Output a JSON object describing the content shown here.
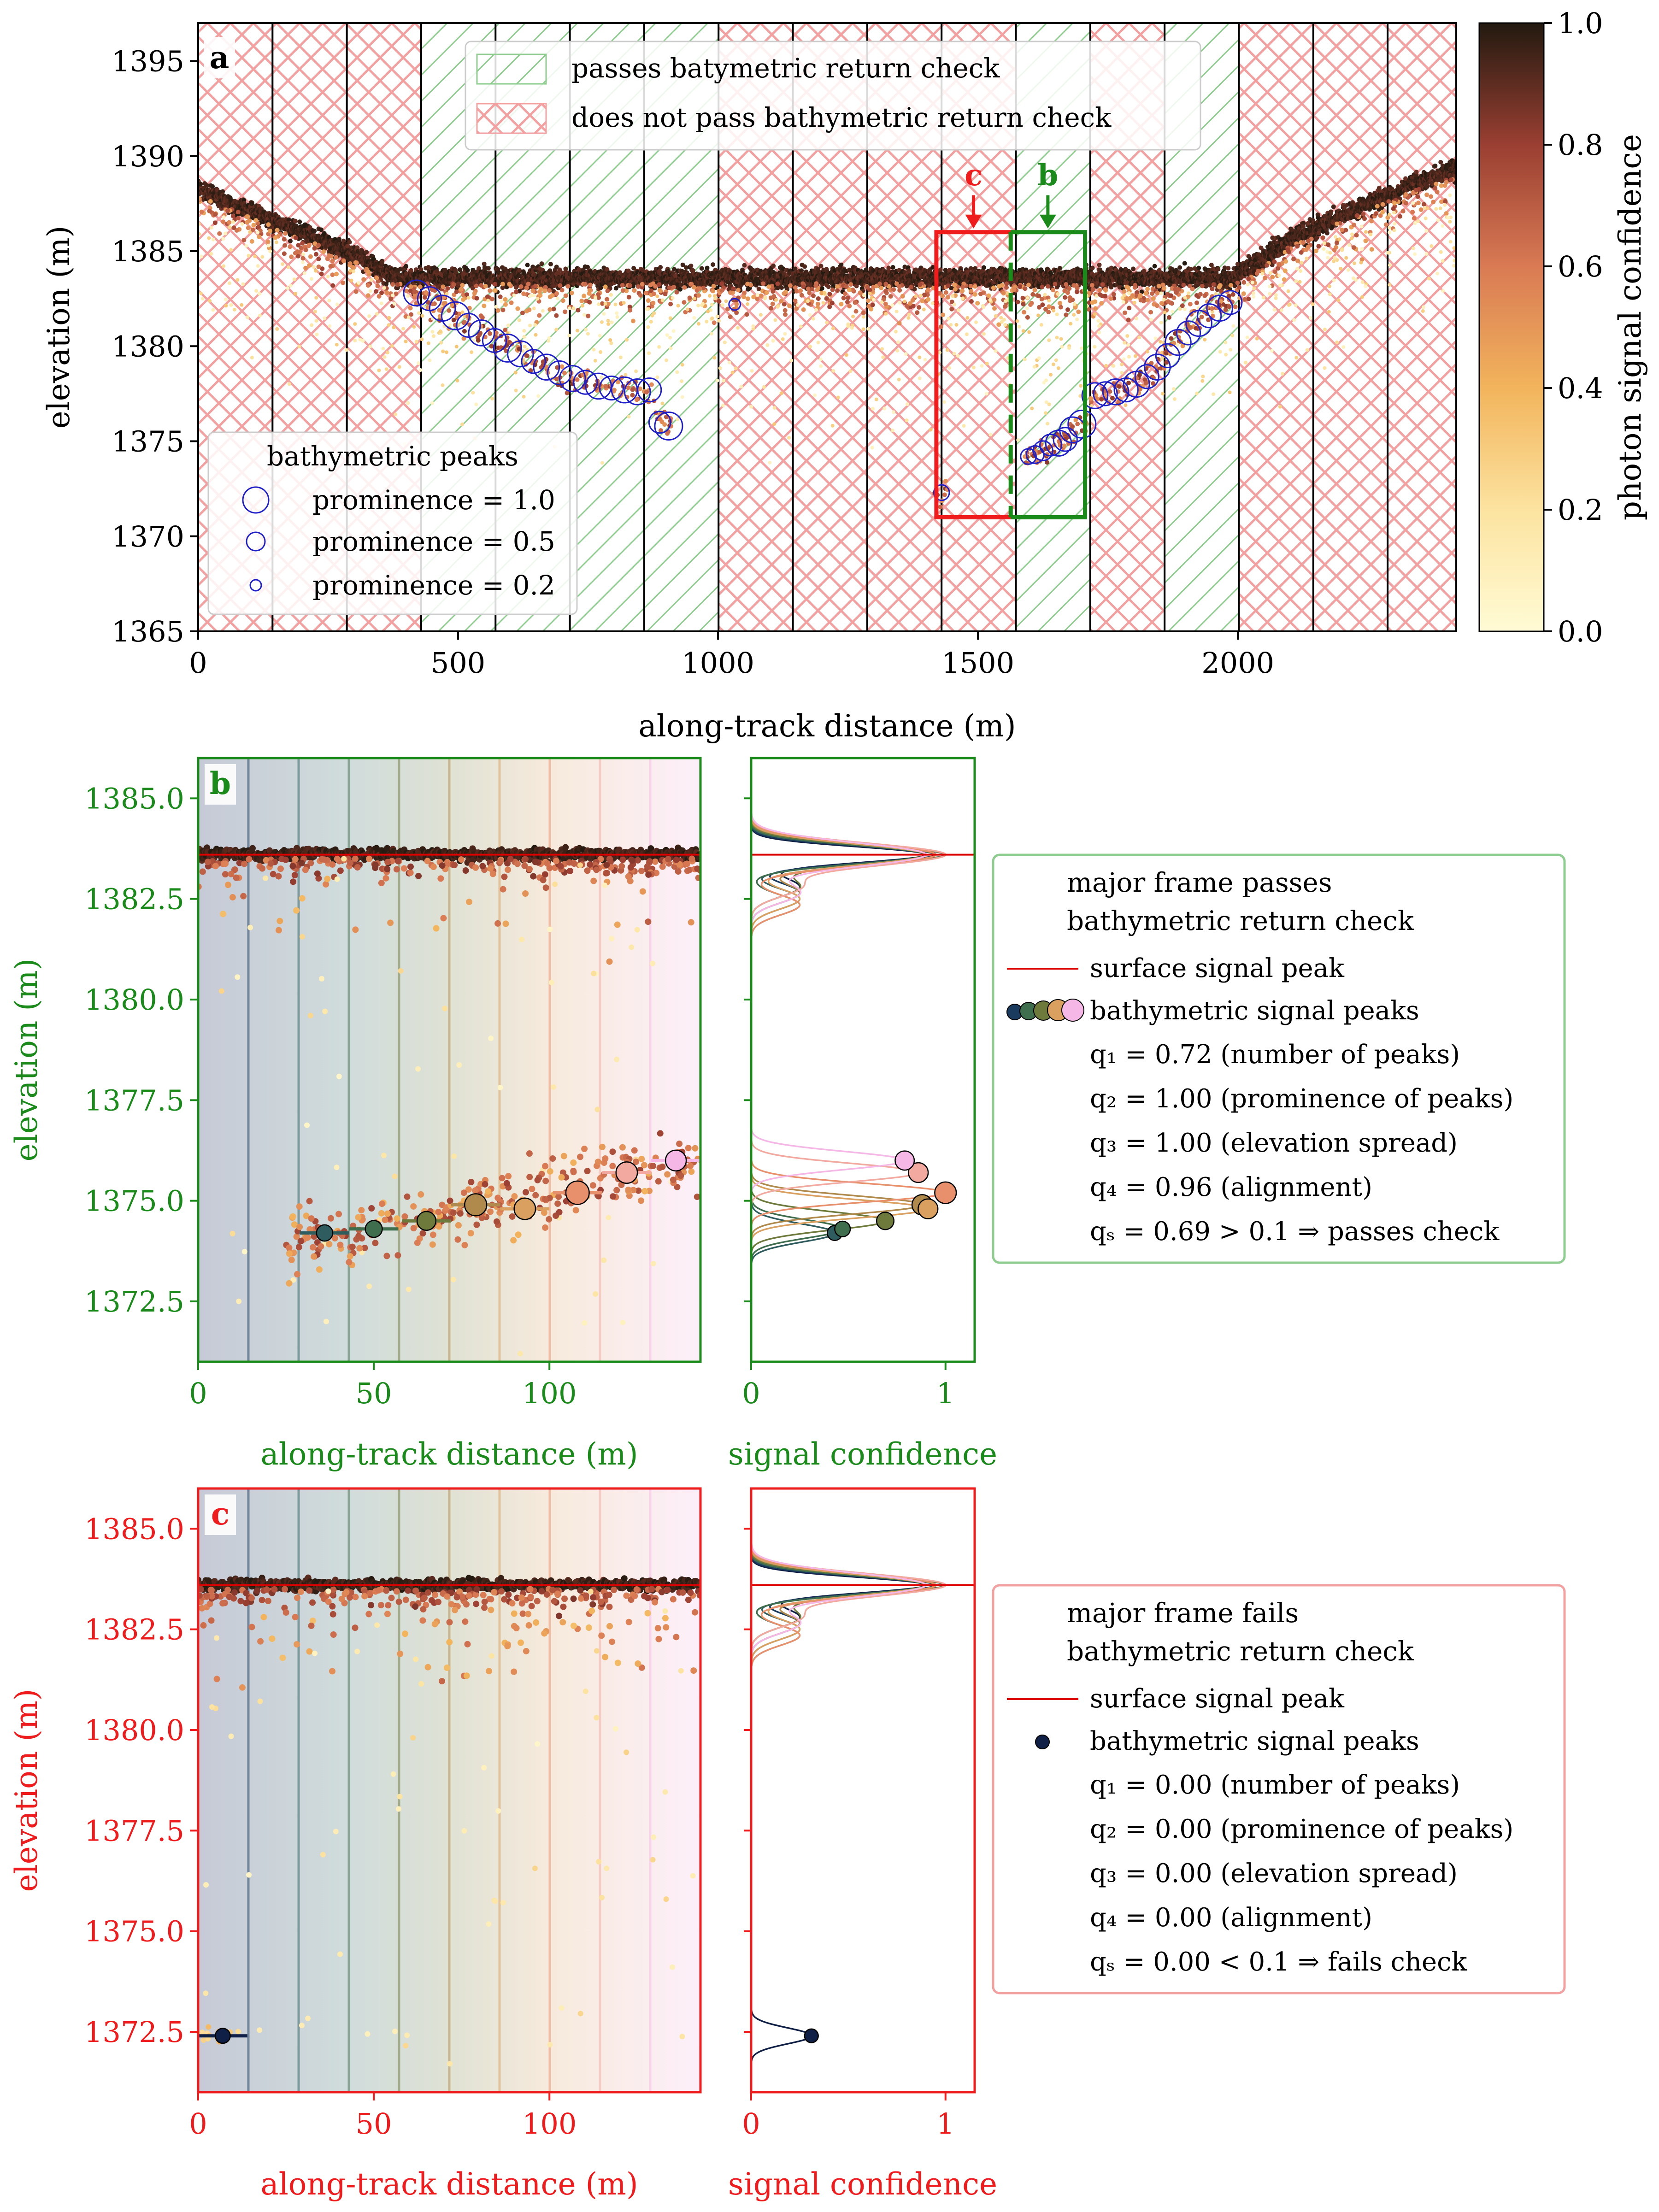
{
  "colors": {
    "green": "#1a8a1a",
    "red": "#ee1c1c",
    "green_hatch": "#7fc47f",
    "red_hatch": "#f2a0a0",
    "peak_marker": "#1f1fc8",
    "surface_line": "#dd0000"
  },
  "chart_data": [
    {
      "panel": "a",
      "panel_label": "a",
      "type": "scatter",
      "xlabel": "along-track distance (m)",
      "ylabel": "elevation (m)",
      "xlim": [
        0,
        2420
      ],
      "ylim": [
        1365,
        1397
      ],
      "xticks": [
        0,
        500,
        1000,
        1500,
        2000
      ],
      "yticks": [
        1365,
        1370,
        1375,
        1380,
        1385,
        1390,
        1395
      ],
      "colorbar": {
        "label": "photon signal confidence",
        "range": [
          0.0,
          1.0
        ],
        "ticks": [
          "0.0",
          "0.2",
          "0.4",
          "0.6",
          "0.8",
          "1.0"
        ],
        "colormap": "yellow-orange-red-dark"
      },
      "frame_boundaries": [
        0,
        143,
        286,
        429,
        572,
        715,
        858,
        1001,
        1144,
        1287,
        1430,
        1573,
        1716,
        1859,
        2002,
        2145,
        2288,
        2420
      ],
      "frame_check": [
        "fail",
        "fail",
        "fail",
        "pass",
        "pass",
        "pass",
        "pass",
        "fail",
        "fail",
        "fail",
        "fail",
        "pass",
        "fail",
        "pass",
        "fail",
        "fail",
        "fail"
      ],
      "legend_hatch": [
        {
          "label": "passes batymetric return check",
          "status": "pass"
        },
        {
          "label": "does not pass bathymetric return check",
          "status": "fail"
        }
      ],
      "peak_legend": {
        "title": "bathymetric peaks",
        "entries": [
          {
            "label": "prominence = 1.0",
            "prominence": 1.0
          },
          {
            "label": "prominence = 0.5",
            "prominence": 0.5
          },
          {
            "label": "prominence = 0.2",
            "prominence": 0.2
          }
        ]
      },
      "surface_profile": [
        [
          0,
          1388.2
        ],
        [
          100,
          1387.1
        ],
        [
          200,
          1386.0
        ],
        [
          300,
          1384.8
        ],
        [
          380,
          1383.6
        ],
        [
          1990,
          1383.6
        ],
        [
          2100,
          1385.6
        ],
        [
          2250,
          1387.5
        ],
        [
          2420,
          1389.4
        ]
      ],
      "bathymetric_peaks": [
        {
          "x": 420,
          "y": 1382.8,
          "prominence": 0.9
        },
        {
          "x": 445,
          "y": 1382.5,
          "prominence": 0.8
        },
        {
          "x": 470,
          "y": 1382.0,
          "prominence": 0.9
        },
        {
          "x": 495,
          "y": 1381.6,
          "prominence": 1.0
        },
        {
          "x": 520,
          "y": 1381.1,
          "prominence": 0.8
        },
        {
          "x": 545,
          "y": 1380.7,
          "prominence": 0.9
        },
        {
          "x": 570,
          "y": 1380.3,
          "prominence": 0.8
        },
        {
          "x": 595,
          "y": 1379.9,
          "prominence": 1.0
        },
        {
          "x": 620,
          "y": 1379.6,
          "prominence": 0.9
        },
        {
          "x": 645,
          "y": 1379.2,
          "prominence": 0.8
        },
        {
          "x": 670,
          "y": 1378.9,
          "prominence": 0.9
        },
        {
          "x": 695,
          "y": 1378.6,
          "prominence": 0.8
        },
        {
          "x": 720,
          "y": 1378.3,
          "prominence": 0.9
        },
        {
          "x": 745,
          "y": 1378.1,
          "prominence": 0.8
        },
        {
          "x": 770,
          "y": 1377.9,
          "prominence": 0.9
        },
        {
          "x": 795,
          "y": 1377.8,
          "prominence": 0.8
        },
        {
          "x": 820,
          "y": 1377.7,
          "prominence": 0.9
        },
        {
          "x": 845,
          "y": 1377.6,
          "prominence": 0.9
        },
        {
          "x": 868,
          "y": 1377.7,
          "prominence": 0.8
        },
        {
          "x": 888,
          "y": 1376.0,
          "prominence": 0.7
        },
        {
          "x": 905,
          "y": 1375.8,
          "prominence": 1.0
        },
        {
          "x": 1032,
          "y": 1382.2,
          "prominence": 0.2
        },
        {
          "x": 1430,
          "y": 1372.3,
          "prominence": 0.4
        },
        {
          "x": 1597,
          "y": 1374.2,
          "prominence": 0.4
        },
        {
          "x": 1610,
          "y": 1374.3,
          "prominence": 0.5
        },
        {
          "x": 1625,
          "y": 1374.5,
          "prominence": 0.6
        },
        {
          "x": 1640,
          "y": 1374.8,
          "prominence": 0.7
        },
        {
          "x": 1655,
          "y": 1374.9,
          "prominence": 0.9
        },
        {
          "x": 1668,
          "y": 1375.1,
          "prominence": 0.8
        },
        {
          "x": 1682,
          "y": 1375.6,
          "prominence": 0.9
        },
        {
          "x": 1700,
          "y": 1375.9,
          "prominence": 1.0
        },
        {
          "x": 1725,
          "y": 1377.4,
          "prominence": 0.9
        },
        {
          "x": 1745,
          "y": 1377.5,
          "prominence": 0.8
        },
        {
          "x": 1765,
          "y": 1377.6,
          "prominence": 0.9
        },
        {
          "x": 1785,
          "y": 1377.7,
          "prominence": 0.8
        },
        {
          "x": 1805,
          "y": 1378.0,
          "prominence": 0.9
        },
        {
          "x": 1825,
          "y": 1378.4,
          "prominence": 0.8
        },
        {
          "x": 1845,
          "y": 1378.9,
          "prominence": 0.9
        },
        {
          "x": 1865,
          "y": 1379.5,
          "prominence": 0.8
        },
        {
          "x": 1885,
          "y": 1380.2,
          "prominence": 0.9
        },
        {
          "x": 1905,
          "y": 1380.7,
          "prominence": 0.8
        },
        {
          "x": 1925,
          "y": 1381.2,
          "prominence": 0.9
        },
        {
          "x": 1945,
          "y": 1381.6,
          "prominence": 0.8
        },
        {
          "x": 1965,
          "y": 1382.0,
          "prominence": 0.9
        },
        {
          "x": 1985,
          "y": 1382.3,
          "prominence": 0.8
        }
      ],
      "highlight_boxes": [
        {
          "label": "c",
          "x_range": [
            1420,
            1563
          ],
          "y_range": [
            1371,
            1386
          ],
          "status": "fail"
        },
        {
          "label": "b",
          "x_range": [
            1563,
            1706
          ],
          "y_range": [
            1371,
            1386
          ],
          "status": "pass"
        }
      ]
    },
    {
      "panel": "b",
      "panel_label": "b",
      "type": "scatter",
      "xlabel": "along-track distance (m)",
      "ylabel": "elevation (m)",
      "xlim": [
        0,
        143
      ],
      "ylim": [
        1371.0,
        1386.0
      ],
      "xticks": [
        0,
        50,
        100
      ],
      "yticks": [
        1372.5,
        1375.0,
        1377.5,
        1380.0,
        1382.5,
        1385.0
      ],
      "surface_peak": 1383.6,
      "bathymetric_peaks": [
        {
          "x": 36,
          "y": 1374.2,
          "conf": 0.43,
          "prominence": 0.4
        },
        {
          "x": 50,
          "y": 1374.3,
          "conf": 0.47,
          "prominence": 0.45
        },
        {
          "x": 65,
          "y": 1374.5,
          "conf": 0.69,
          "prominence": 0.6
        },
        {
          "x": 79,
          "y": 1374.9,
          "conf": 0.88,
          "prominence": 0.85
        },
        {
          "x": 93,
          "y": 1374.8,
          "conf": 0.91,
          "prominence": 0.8
        },
        {
          "x": 108,
          "y": 1375.2,
          "conf": 1.0,
          "prominence": 0.95
        },
        {
          "x": 122,
          "y": 1375.7,
          "conf": 0.86,
          "prominence": 0.8
        },
        {
          "x": 136,
          "y": 1376.0,
          "conf": 0.79,
          "prominence": 0.75
        }
      ],
      "signal_xlabel": "signal confidence",
      "signal_xlim": [
        0,
        1.15
      ],
      "signal_xticks": [
        0,
        1
      ],
      "legend": {
        "title_line1": "major frame passes",
        "title_line2": "bathymetric return check",
        "surface_label": "surface signal peak",
        "peaks_label": "bathymetric signal peaks",
        "q1": "q₁ = 0.72 (number of peaks)",
        "q2": "q₂ = 1.00 (prominence of peaks)",
        "q3": "q₃ = 1.00 (elevation spread)",
        "q4": "q₄ = 0.96 (alignment)",
        "qs": "qₛ = 0.69 > 0.1 ⇒ passes check"
      }
    },
    {
      "panel": "c",
      "panel_label": "c",
      "type": "scatter",
      "xlabel": "along-track distance (m)",
      "ylabel": "elevation (m)",
      "xlim": [
        0,
        143
      ],
      "ylim": [
        1371.0,
        1386.0
      ],
      "xticks": [
        0,
        50,
        100
      ],
      "yticks": [
        1372.5,
        1375.0,
        1377.5,
        1380.0,
        1382.5,
        1385.0
      ],
      "surface_peak": 1383.6,
      "bathymetric_peaks": [
        {
          "x": 7,
          "y": 1372.4,
          "conf": 0.31,
          "prominence": 0.3
        }
      ],
      "signal_xlabel": "signal confidence",
      "signal_xlim": [
        0,
        1.15
      ],
      "signal_xticks": [
        0,
        1
      ],
      "legend": {
        "title_line1": "major frame fails",
        "title_line2": "bathymetric return check",
        "surface_label": "surface signal peak",
        "peaks_label": "bathymetric signal peaks",
        "q1": "q₁ = 0.00 (number of peaks)",
        "q2": "q₂ = 0.00 (prominence of peaks)",
        "q3": "q₃ = 0.00 (elevation spread)",
        "q4": "q₄ = 0.00 (alignment)",
        "qs": "qₛ = 0.00 < 0.1 ⇒ fails check"
      }
    }
  ]
}
